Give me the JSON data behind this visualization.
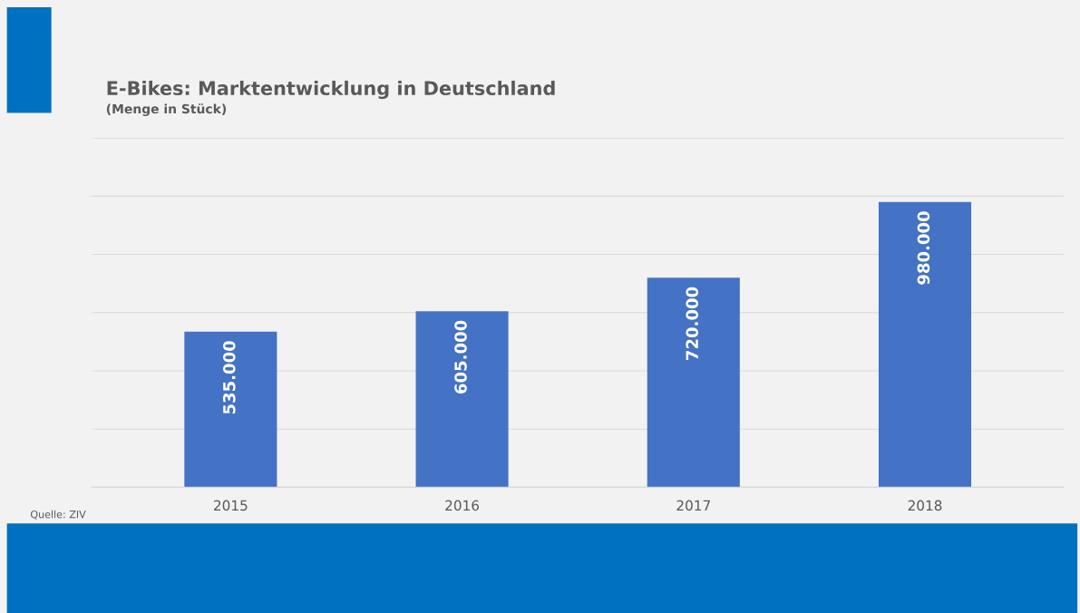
{
  "chart_data": {
    "type": "bar",
    "title": "E-Bikes: Marktentwicklung in Deutschland",
    "subtitle": "(Menge in Stück)",
    "categories": [
      "2015",
      "2016",
      "2017",
      "2018"
    ],
    "values": [
      535000,
      605000,
      720000,
      980000
    ],
    "value_labels": [
      "535.000",
      "605.000",
      "720.000",
      "980.000"
    ],
    "color": "#4472c4",
    "ylim": [
      0,
      1200000
    ],
    "yticks": [
      {
        "value": 0,
        "label": null
      },
      {
        "value": 200000,
        "label": null
      },
      {
        "value": 400000,
        "label": null
      },
      {
        "value": 600000,
        "label": null
      },
      {
        "value": 800000,
        "label": null
      },
      {
        "value": 1000000,
        "label": null
      },
      {
        "value": 1200000,
        "label": null
      }
    ],
    "tick_labels": "x",
    "grid": "y",
    "legend": false,
    "annotations": [
      "Quelle: ZIV"
    ]
  }
}
